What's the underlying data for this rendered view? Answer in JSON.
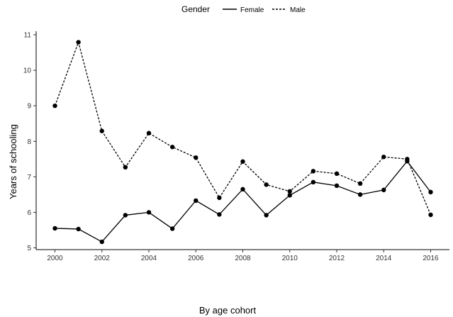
{
  "chart_data": {
    "type": "line",
    "title": "",
    "xlabel": "By age cohort",
    "ylabel": "Years of schooling",
    "x": [
      2000,
      2001,
      2002,
      2003,
      2004,
      2005,
      2006,
      2007,
      2008,
      2009,
      2010,
      2011,
      2012,
      2013,
      2014,
      2015,
      2016
    ],
    "xlim": [
      1999.2,
      2016.8
    ],
    "ylim": [
      4.95,
      11.1
    ],
    "xticks": [
      "2000",
      "2002",
      "2004",
      "2006",
      "2008",
      "2010",
      "2012",
      "2014",
      "2016"
    ],
    "yticks": [
      "5",
      "6",
      "7",
      "8",
      "9",
      "10",
      "11"
    ],
    "grid": false,
    "legend": {
      "title": "Gender",
      "position": "top"
    },
    "series": [
      {
        "name": "Female",
        "line_style": "solid",
        "values": [
          5.55,
          5.53,
          5.17,
          5.92,
          6.0,
          5.54,
          6.33,
          5.94,
          6.65,
          5.92,
          6.48,
          6.85,
          6.75,
          6.5,
          6.63,
          7.44,
          6.57
        ]
      },
      {
        "name": "Male",
        "line_style": "dotted",
        "values": [
          9.0,
          10.79,
          8.29,
          7.27,
          8.23,
          7.84,
          7.54,
          6.41,
          7.43,
          6.78,
          6.59,
          7.16,
          7.09,
          6.81,
          7.56,
          7.5,
          5.93
        ]
      }
    ]
  }
}
